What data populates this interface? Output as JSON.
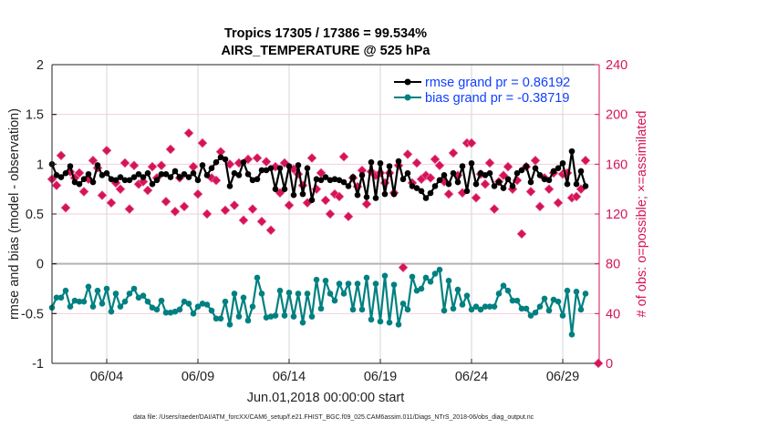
{
  "chart_data": {
    "type": "line",
    "title": "Tropics 17305 / 17386 = 99.534%",
    "subtitle": "AIRS_TEMPERATURE @ 525 hPa",
    "xlabel": "Jun.01,2018 00:00:00 start",
    "ylabel": "rmse and bias (model - observation)",
    "ylabel_right": "# of obs: o=possible; ×=assimilated",
    "footer": "data file: /Users/raeder/DAI/ATM_forcXX/CAM6_setup/f.e21.FHIST_BGC.f09_025.CAM6assim.011/Diags_NTrS_2018-06/obs_diag_output.nc",
    "xlim_days": [
      0,
      30
    ],
    "ylim": [
      -1,
      2
    ],
    "ylim_right": [
      0,
      240
    ],
    "yticks": [
      "2",
      "1.5",
      "1",
      "0.5",
      "0",
      "-0.5",
      "-1"
    ],
    "yticks_right": [
      "240",
      "200",
      "160",
      "120",
      "80",
      "40",
      "0"
    ],
    "xticks": [
      {
        "day": 3,
        "label": "06/04"
      },
      {
        "day": 8,
        "label": "06/09"
      },
      {
        "day": 13,
        "label": "06/14"
      },
      {
        "day": 18,
        "label": "06/19"
      },
      {
        "day": 23,
        "label": "06/24"
      },
      {
        "day": 28,
        "label": "06/29"
      }
    ],
    "grid": true,
    "legend_placement": "top-right",
    "x_start_day": 0,
    "x_step_day": 0.25,
    "series": [
      {
        "name": "rmse grand pr = 0.86192",
        "color": "#000000",
        "values": [
          1.0,
          0.89,
          0.87,
          0.91,
          0.98,
          0.82,
          0.8,
          0.85,
          0.9,
          0.82,
          0.99,
          0.89,
          0.91,
          0.85,
          0.84,
          0.87,
          0.84,
          0.84,
          0.87,
          0.9,
          0.87,
          0.91,
          0.8,
          0.84,
          0.9,
          0.9,
          0.87,
          0.93,
          0.87,
          0.9,
          0.87,
          0.91,
          0.84,
          0.99,
          0.89,
          0.96,
          1.02,
          1.07,
          1.05,
          0.78,
          0.91,
          0.89,
          1.02,
          0.9,
          0.84,
          0.85,
          0.94,
          0.94,
          0.96,
          0.75,
          0.96,
          0.75,
          0.98,
          0.69,
          0.99,
          0.7,
          0.96,
          0.64,
          0.85,
          0.84,
          0.87,
          0.84,
          0.85,
          0.84,
          0.82,
          0.78,
          0.87,
          0.69,
          0.89,
          0.67,
          1.02,
          0.66,
          1.01,
          0.7,
          0.98,
          0.7,
          1.03,
          0.85,
          0.91,
          0.78,
          0.76,
          0.73,
          0.66,
          0.71,
          0.78,
          0.84,
          0.89,
          0.8,
          0.91,
          0.82,
          0.98,
          0.73,
          1.01,
          0.8,
          0.91,
          0.89,
          0.91,
          0.78,
          0.82,
          0.76,
          0.85,
          0.78,
          0.91,
          0.94,
          0.98,
          0.82,
          0.96,
          0.89,
          0.85,
          0.84,
          0.93,
          0.96,
          1.01,
          0.8,
          1.13,
          0.8,
          0.93,
          0.78
        ]
      },
      {
        "name": "bias grand pr = -0.38719",
        "color": "#008080",
        "values": [
          -0.44,
          -0.34,
          -0.34,
          -0.27,
          -0.43,
          -0.37,
          -0.38,
          -0.38,
          -0.23,
          -0.43,
          -0.27,
          -0.4,
          -0.25,
          -0.48,
          -0.3,
          -0.43,
          -0.38,
          -0.3,
          -0.25,
          -0.34,
          -0.32,
          -0.38,
          -0.44,
          -0.46,
          -0.37,
          -0.49,
          -0.49,
          -0.48,
          -0.46,
          -0.38,
          -0.4,
          -0.5,
          -0.43,
          -0.4,
          -0.41,
          -0.47,
          -0.55,
          -0.55,
          -0.38,
          -0.61,
          -0.3,
          -0.53,
          -0.34,
          -0.57,
          -0.43,
          -0.14,
          -0.3,
          -0.54,
          -0.53,
          -0.52,
          -0.27,
          -0.52,
          -0.29,
          -0.53,
          -0.3,
          -0.59,
          -0.3,
          -0.53,
          -0.16,
          -0.45,
          -0.17,
          -0.3,
          -0.37,
          -0.2,
          -0.3,
          -0.2,
          -0.46,
          -0.2,
          -0.46,
          -0.14,
          -0.56,
          -0.2,
          -0.58,
          -0.12,
          -0.59,
          -0.21,
          -0.61,
          -0.4,
          -0.46,
          -0.13,
          -0.27,
          -0.25,
          -0.14,
          -0.18,
          -0.1,
          -0.06,
          -0.47,
          -0.17,
          -0.45,
          -0.26,
          -0.41,
          -0.32,
          -0.46,
          -0.43,
          -0.46,
          -0.43,
          -0.43,
          -0.43,
          -0.3,
          -0.22,
          -0.27,
          -0.37,
          -0.37,
          -0.45,
          -0.45,
          -0.52,
          -0.49,
          -0.43,
          -0.35,
          -0.47,
          -0.36,
          -0.38,
          -0.52,
          -0.27,
          -0.71,
          -0.28,
          -0.46,
          -0.3
        ]
      },
      {
        "name": "obs assimilated",
        "axis": "right",
        "color": "#d6135a",
        "values": [
          148,
          143,
          167,
          125,
          154,
          149,
          153,
          138,
          148,
          163,
          157,
          135,
          171,
          129,
          145,
          140,
          161,
          124,
          159,
          144,
          146,
          139,
          158,
          149,
          159,
          130,
          172,
          122,
          149,
          126,
          185,
          158,
          136,
          177,
          120,
          149,
          147,
          170,
          123,
          160,
          127,
          161,
          115,
          164,
          124,
          165,
          114,
          162,
          107,
          158,
          137,
          161,
          127,
          156,
          152,
          143,
          129,
          165,
          140,
          153,
          131,
          120,
          136,
          134,
          166,
          118,
          149,
          142,
          155,
          128,
          154,
          151,
          153,
          145,
          153,
          137,
          159,
          77,
          168,
          145,
          161,
          148,
          151,
          149,
          164,
          159,
          146,
          136,
          169,
          151,
          137,
          177,
          177,
          133,
          152,
          144,
          161,
          124,
          146,
          151,
          158,
          140,
          147,
          104,
          158,
          138,
          163,
          126,
          149,
          140,
          153,
          129,
          152,
          153,
          133,
          134,
          140,
          163
        ],
        "extra_points": [
          {
            "day": 29.95,
            "value": 0
          }
        ]
      }
    ]
  }
}
